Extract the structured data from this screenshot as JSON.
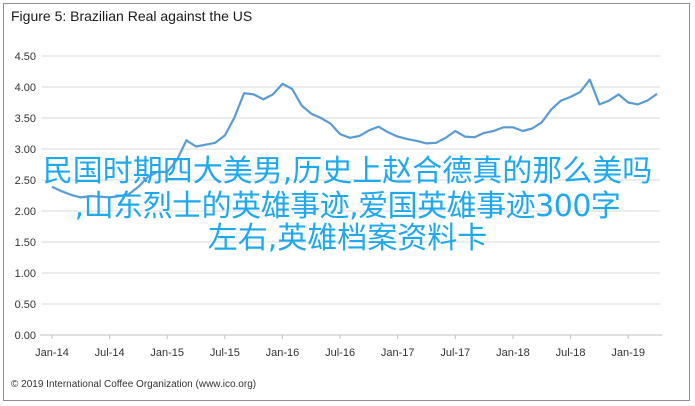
{
  "overlay": {
    "line1": "民国时期四大美男,历史上赵合德真的那么美吗",
    "line2": ",山东烈士的英雄事迹,爱国英雄事迹300字",
    "line3": "左右,英雄档案资料卡"
  },
  "footer": "© 2019 International Coffee Organization (www.ico.org)",
  "colors": {
    "line": "#5b9bd5",
    "grid": "#d9d9d9",
    "overlay_text": "#1ea8ee"
  },
  "chart_data": {
    "type": "line",
    "title": "Figure 5: Brazilian Real against the US",
    "xlabel": "",
    "ylabel": "",
    "ylim": [
      0,
      4.5
    ],
    "yticks": [
      "0.00",
      "0.50",
      "1.00",
      "1.50",
      "2.00",
      "2.50",
      "3.00",
      "3.50",
      "4.00",
      "4.50"
    ],
    "xticks": [
      "Jan-14",
      "Jul-14",
      "Jan-15",
      "Jul-15",
      "Jan-16",
      "Jul-16",
      "Jan-17",
      "Jul-17",
      "Jan-18",
      "Jul-18",
      "Jan-19"
    ],
    "grid": true,
    "series": [
      {
        "values": [
          2.39,
          2.32,
          2.26,
          2.22,
          2.24,
          2.23,
          2.22,
          2.24,
          2.27,
          2.39,
          2.55,
          2.63,
          2.63,
          2.82,
          3.14,
          3.04,
          3.07,
          3.1,
          3.22,
          3.51,
          3.9,
          3.88,
          3.8,
          3.88,
          4.05,
          3.97,
          3.7,
          3.57,
          3.5,
          3.41,
          3.24,
          3.18,
          3.21,
          3.3,
          3.36,
          3.27,
          3.2,
          3.16,
          3.13,
          3.09,
          3.1,
          3.18,
          3.29,
          3.2,
          3.19,
          3.26,
          3.29,
          3.35,
          3.35,
          3.29,
          3.33,
          3.43,
          3.64,
          3.78,
          3.84,
          3.92,
          4.12,
          3.72,
          3.78,
          3.88,
          3.75,
          3.72,
          3.78,
          3.89
        ]
      }
    ]
  }
}
